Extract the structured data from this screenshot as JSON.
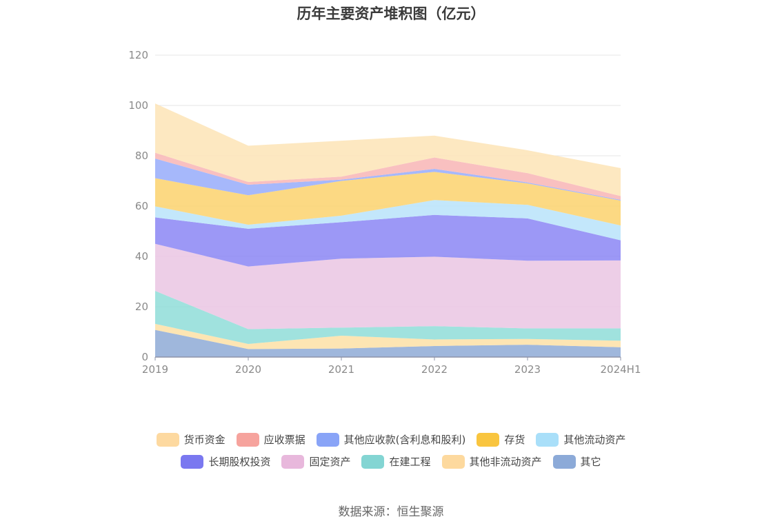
{
  "chart_data": {
    "type": "area",
    "title": "历年主要资产堆积图（亿元）",
    "categories": [
      "2019",
      "2020",
      "2021",
      "2022",
      "2023",
      "2024H1"
    ],
    "ylim": [
      0,
      120
    ],
    "yticks": [
      0,
      20,
      40,
      60,
      80,
      100,
      120
    ],
    "grid": true,
    "stacked": true,
    "legend_position": "bottom",
    "series": [
      {
        "name": "其它",
        "color": "#8eaad6",
        "values": [
          10.8,
          3.2,
          3.4,
          4.4,
          4.9,
          3.9
        ]
      },
      {
        "name": "其他非流动资产",
        "color": "#fde0a6",
        "values": [
          2.4,
          2.0,
          5.1,
          2.6,
          2.3,
          2.6
        ]
      },
      {
        "name": "在建工程",
        "color": "#8fddd8",
        "values": [
          13.1,
          5.9,
          3.2,
          5.3,
          4.2,
          4.9
        ]
      },
      {
        "name": "固定资产",
        "color": "#eac5e3",
        "values": [
          18.7,
          24.9,
          27.4,
          27.6,
          26.9,
          27.0
        ]
      },
      {
        "name": "长期股权投资",
        "color": "#8b86f5",
        "values": [
          10.5,
          15.0,
          14.5,
          16.6,
          16.8,
          8.0
        ]
      },
      {
        "name": "其他流动资产",
        "color": "#b8e3fa",
        "values": [
          4.4,
          1.6,
          2.6,
          5.9,
          5.4,
          5.9
        ]
      },
      {
        "name": "存货",
        "color": "#fcd26d",
        "values": [
          11.2,
          11.7,
          13.8,
          11.2,
          8.5,
          9.9
        ]
      },
      {
        "name": "其他应收款(含利息和股利)",
        "color": "#97abfa",
        "values": [
          7.8,
          4.2,
          0.5,
          1.2,
          0.4,
          0.3
        ]
      },
      {
        "name": "应收票据",
        "color": "#f8b5b5",
        "values": [
          2.3,
          1.1,
          1.2,
          4.5,
          3.7,
          1.5
        ]
      },
      {
        "name": "货币资金",
        "color": "#fde4b6",
        "values": [
          19.6,
          14.4,
          14.3,
          8.7,
          9.1,
          11.1
        ]
      }
    ]
  },
  "legend": {
    "row1": [
      {
        "label": "货币资金",
        "color": "#fdd9a0"
      },
      {
        "label": "应收票据",
        "color": "#f6a39d"
      },
      {
        "label": "其他应收款(含利息和股利)",
        "color": "#89a4f7"
      },
      {
        "label": "存货",
        "color": "#f9c53f"
      },
      {
        "label": "其他流动资产",
        "color": "#a9dff9"
      }
    ],
    "row2": [
      {
        "label": "长期股权投资",
        "color": "#7a78f0"
      },
      {
        "label": "固定资产",
        "color": "#e8b8dc"
      },
      {
        "label": "在建工程",
        "color": "#83d5d3"
      },
      {
        "label": "其他非流动资产",
        "color": "#fdd99e"
      },
      {
        "label": "其它",
        "color": "#8caad8"
      }
    ]
  },
  "source": "数据来源：恒生聚源"
}
